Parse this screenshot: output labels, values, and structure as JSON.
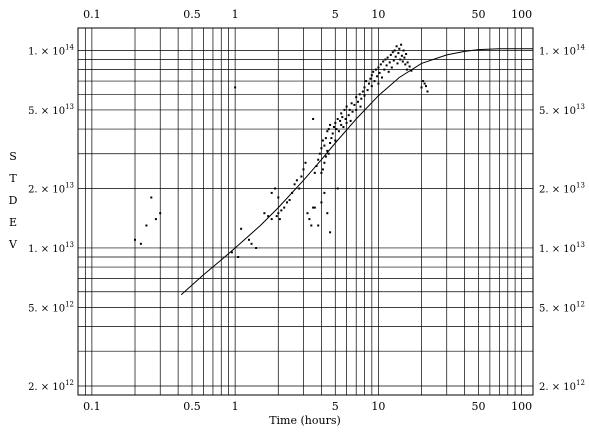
{
  "chart_data": {
    "type": "scatter",
    "title": "",
    "xlabel": "Time (hours)",
    "ylabel": "S T D E V",
    "x_scale": "log",
    "y_scale": "log",
    "xlim": [
      0.08,
      120
    ],
    "ylim": [
      1800000000000.0,
      130000000000000.0
    ],
    "grid": true,
    "x_ticks": [
      {
        "value": 0.1,
        "label": "0.1"
      },
      {
        "value": 0.5,
        "label": "0.5"
      },
      {
        "value": 1,
        "label": "1"
      },
      {
        "value": 5,
        "label": "5"
      },
      {
        "value": 10,
        "label": "10"
      },
      {
        "value": 50,
        "label": "50"
      },
      {
        "value": 100,
        "label": "100"
      }
    ],
    "y_ticks": [
      {
        "value": 100000000000000.0,
        "mantissa": "1.",
        "exp": "14"
      },
      {
        "value": 50000000000000.0,
        "mantissa": "5.",
        "exp": "13"
      },
      {
        "value": 20000000000000.0,
        "mantissa": "2.",
        "exp": "13"
      },
      {
        "value": 10000000000000.0,
        "mantissa": "1.",
        "exp": "13"
      },
      {
        "value": 5000000000000.0,
        "mantissa": "5.",
        "exp": "12"
      },
      {
        "value": 2000000000000.0,
        "mantissa": "2.",
        "exp": "12"
      }
    ],
    "series": [
      {
        "kind": "points",
        "color": "#000000",
        "x": [
          0.2,
          0.22,
          0.24,
          0.26,
          0.28,
          0.3,
          1.0,
          0.95,
          1.05,
          1.1,
          1.25,
          1.3,
          1.4,
          1.6,
          1.7,
          1.8,
          1.8,
          1.9,
          1.95,
          2.0,
          2.0,
          2.05,
          2.1,
          2.2,
          2.3,
          2.4,
          2.5,
          2.6,
          2.7,
          2.8,
          2.9,
          3.0,
          3.1,
          3.2,
          3.3,
          3.4,
          3.5,
          3.5,
          3.6,
          3.7,
          3.8,
          3.9,
          4.0,
          4.0,
          4.1,
          4.1,
          4.2,
          4.2,
          4.3,
          4.3,
          4.4,
          4.4,
          4.5,
          4.5,
          4.6,
          4.6,
          4.7,
          4.8,
          4.9,
          5.0,
          5.0,
          5.1,
          5.2,
          5.3,
          5.4,
          5.5,
          5.5,
          5.6,
          5.7,
          5.8,
          5.9,
          6.0,
          6.0,
          6.2,
          6.3,
          6.4,
          6.5,
          6.6,
          6.8,
          7.0,
          7.0,
          7.2,
          7.4,
          7.5,
          7.6,
          7.8,
          8.0,
          8.0,
          8.2,
          8.4,
          8.6,
          8.8,
          9.0,
          9.0,
          9.2,
          9.4,
          9.6,
          9.8,
          10.0,
          10.0,
          10.2,
          10.4,
          10.6,
          10.8,
          11.0,
          11.2,
          11.4,
          11.6,
          11.8,
          12.0,
          12.2,
          12.4,
          12.6,
          12.8,
          13.0,
          13.2,
          13.4,
          13.6,
          13.8,
          14.0,
          14.2,
          14.4,
          14.6,
          14.8,
          15.0,
          15.2,
          15.4,
          15.6,
          15.8,
          16.0,
          16.5,
          17.0,
          20.0,
          20.5,
          21.0,
          21.5,
          22.0,
          4.2,
          4.4,
          3.6,
          3.8,
          4.0,
          4.6,
          5.2
        ],
        "y": [
          11000000000000.0,
          10500000000000.0,
          13000000000000.0,
          18000000000000.0,
          14000000000000.0,
          15000000000000.0,
          65000000000000.0,
          9500000000000.0,
          9000000000000.0,
          12500000000000.0,
          11000000000000.0,
          10500000000000.0,
          10000000000000.0,
          15000000000000.0,
          14500000000000.0,
          14000000000000.0,
          19000000000000.0,
          20000000000000.0,
          14500000000000.0,
          15000000000000.0,
          18000000000000.0,
          14000000000000.0,
          15500000000000.0,
          16000000000000.0,
          17000000000000.0,
          17500000000000.0,
          19000000000000.0,
          21000000000000.0,
          22000000000000.0,
          20000000000000.0,
          23000000000000.0,
          25000000000000.0,
          27000000000000.0,
          15000000000000.0,
          14000000000000.0,
          13000000000000.0,
          16000000000000.0,
          45000000000000.0,
          24000000000000.0,
          26000000000000.0,
          28000000000000.0,
          30000000000000.0,
          24000000000000.0,
          32000000000000.0,
          25000000000000.0,
          35000000000000.0,
          27000000000000.0,
          33000000000000.0,
          29000000000000.0,
          36000000000000.0,
          31000000000000.0,
          39000000000000.0,
          30000000000000.0,
          40000000000000.0,
          34000000000000.0,
          42000000000000.0,
          36000000000000.0,
          38000000000000.0,
          41000000000000.0,
          35000000000000.0,
          43000000000000.0,
          40000000000000.0,
          45000000000000.0,
          39000000000000.0,
          44000000000000.0,
          42000000000000.0,
          48000000000000.0,
          46000000000000.0,
          41000000000000.0,
          50000000000000.0,
          45000000000000.0,
          43000000000000.0,
          52000000000000.0,
          47000000000000.0,
          50000000000000.0,
          44000000000000.0,
          54000000000000.0,
          49000000000000.0,
          53000000000000.0,
          50000000000000.0,
          58000000000000.0,
          55000000000000.0,
          60000000000000.0,
          52000000000000.0,
          57000000000000.0,
          62000000000000.0,
          65000000000000.0,
          59000000000000.0,
          70000000000000.0,
          63000000000000.0,
          68000000000000.0,
          72000000000000.0,
          66000000000000.0,
          75000000000000.0,
          78000000000000.0,
          70000000000000.0,
          80000000000000.0,
          74000000000000.0,
          68000000000000.0,
          82000000000000.0,
          77000000000000.0,
          85000000000000.0,
          73000000000000.0,
          88000000000000.0,
          80000000000000.0,
          90000000000000.0,
          84000000000000.0,
          92000000000000.0,
          78000000000000.0,
          87000000000000.0,
          95000000000000.0,
          82000000000000.0,
          98000000000000.0,
          89000000000000.0,
          100000000000000.0,
          93000000000000.0,
          105000000000000.0,
          86000000000000.0,
          97000000000000.0,
          102000000000000.0,
          90000000000000.0,
          107000000000000.0,
          94000000000000.0,
          88000000000000.0,
          100000000000000.0,
          92000000000000.0,
          85000000000000.0,
          96000000000000.0,
          80000000000000.0,
          87000000000000.0,
          83000000000000.0,
          79000000000000.0,
          65000000000000.0,
          70000000000000.0,
          68000000000000.0,
          66000000000000.0,
          62000000000000.0,
          19000000000000.0,
          15000000000000.0,
          16000000000000.0,
          13000000000000.0,
          17000000000000.0,
          12000000000000.0,
          20000000000000.0
        ]
      },
      {
        "kind": "line",
        "color": "#000000",
        "x": [
          0.42,
          0.6,
          0.8,
          1.0,
          1.5,
          2.0,
          3.0,
          4.0,
          5.0,
          7.0,
          10.0,
          14.0,
          20.0,
          30.0,
          40.0,
          50.0,
          70.0,
          100.0,
          120.0
        ],
        "y": [
          5800000000000.0,
          7300000000000.0,
          8700000000000.0,
          10000000000000.0,
          13000000000000.0,
          16000000000000.0,
          22000000000000.0,
          28000000000000.0,
          34000000000000.0,
          45000000000000.0,
          59000000000000.0,
          73000000000000.0,
          86000000000000.0,
          95000000000000.0,
          99000000000000.0,
          101000000000000.0,
          102000000000000.0,
          102000000000000.0,
          102000000000000.0
        ]
      }
    ]
  }
}
